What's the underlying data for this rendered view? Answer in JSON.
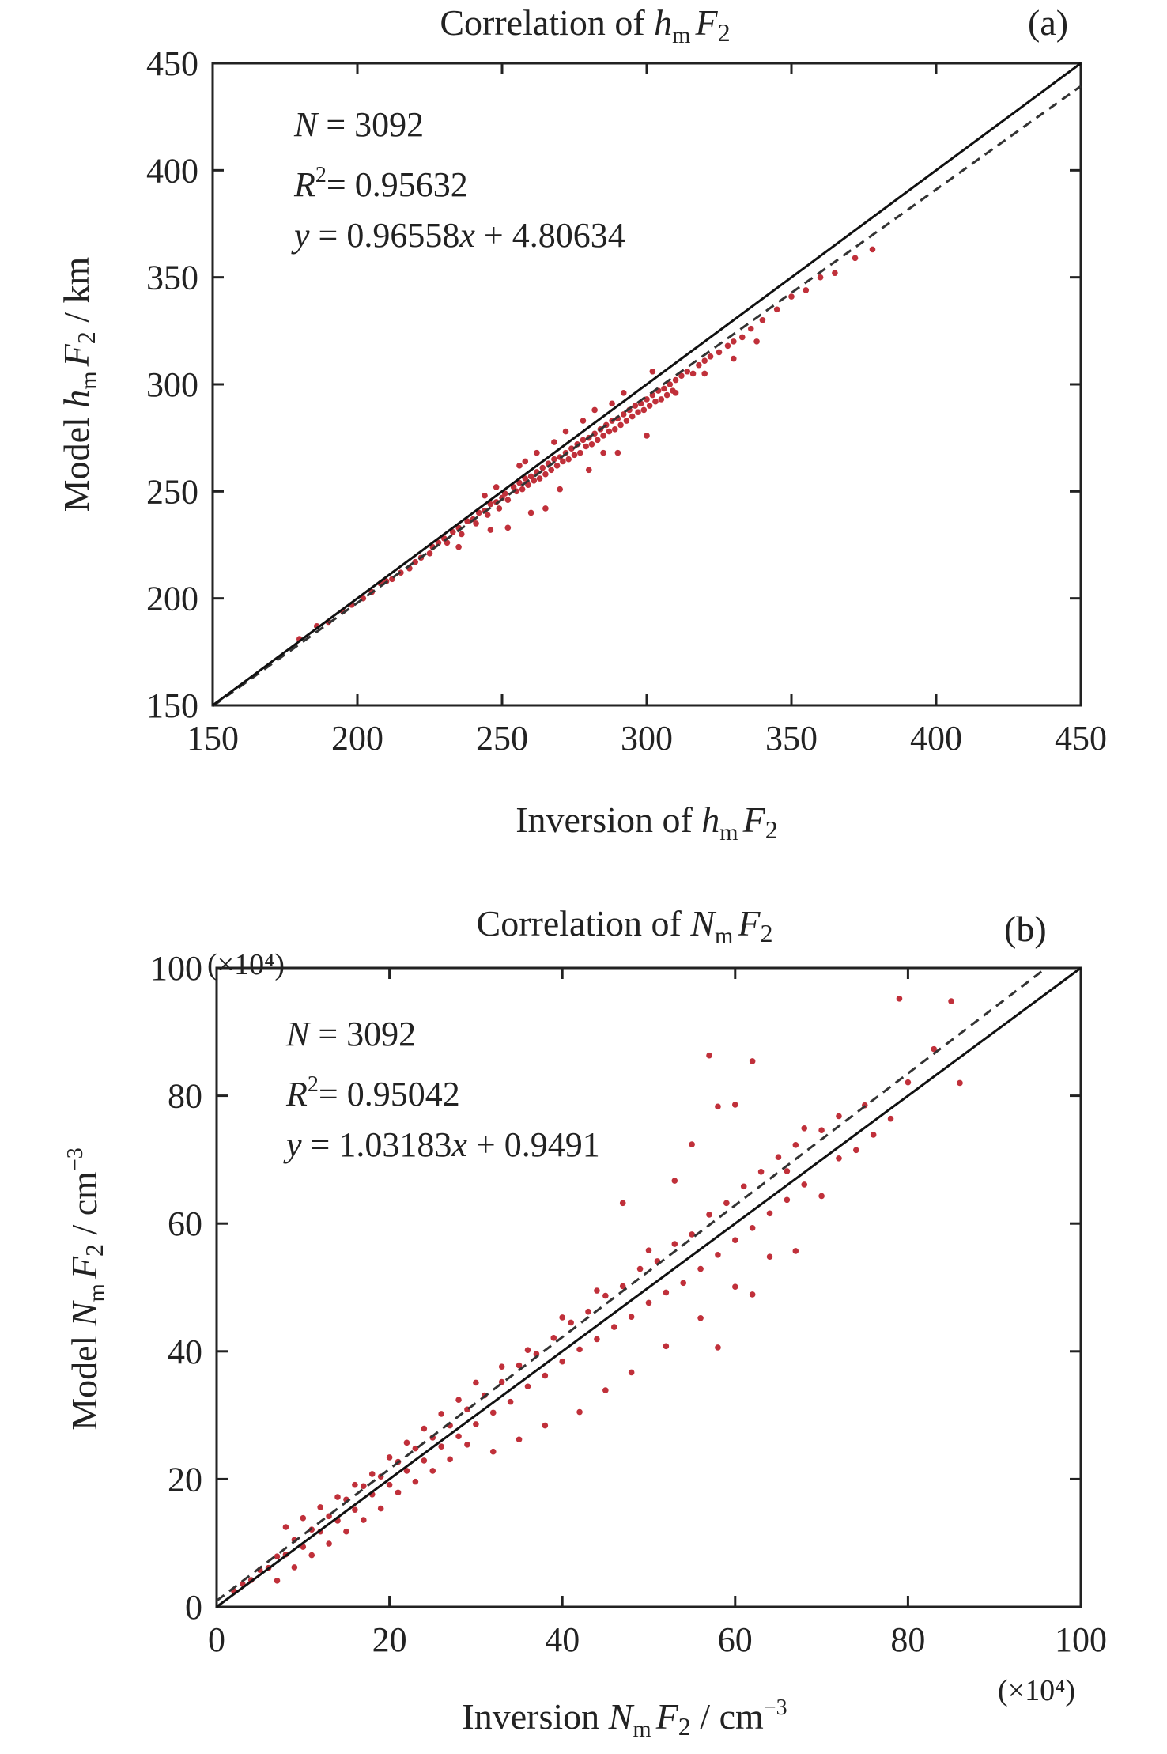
{
  "figure": {
    "panels": [
      {
        "panel_label": "(a)",
        "title": {
          "prefix": "Correlation of ",
          "var": "h",
          "sub": "m",
          "tail": "F",
          "tail_sub": "2"
        },
        "xlabel": {
          "prefix": "Inversion of ",
          "var": "h",
          "sub": "m",
          "tail": "F",
          "tail_sub": "2",
          "unit": ""
        },
        "ylabel": {
          "prefix": "Model ",
          "var": "h",
          "sub": "m",
          "tail": "F",
          "tail_sub": "2",
          "unit": " / km",
          "unit_sup": ""
        },
        "stats": {
          "n_lhs": "N",
          "n_rhs": " = 3092",
          "r2_lhs": "R",
          "r2_sup": "2",
          "r2_rhs": "= 0.95632",
          "eq_y": "y",
          "eq_mid": " = 0.96558",
          "eq_x": "x",
          "eq_tail": " + 4.80634"
        },
        "x_multiplier": "",
        "y_multiplier": ""
      },
      {
        "panel_label": "(b)",
        "title": {
          "prefix": "Correlation of ",
          "var": "N",
          "sub": "m",
          "tail": "F",
          "tail_sub": "2"
        },
        "xlabel": {
          "prefix": "Inversion ",
          "var": "N",
          "sub": "m",
          "tail": "F",
          "tail_sub": "2",
          "unit": " / cm",
          "unit_sup": "−3"
        },
        "ylabel": {
          "prefix": "Model ",
          "var": "N",
          "sub": "m",
          "tail": "F",
          "tail_sub": "2",
          "unit": " / cm",
          "unit_sup": "−3"
        },
        "stats": {
          "n_lhs": "N",
          "n_rhs": " = 3092",
          "r2_lhs": "R",
          "r2_sup": "2",
          "r2_rhs": "= 0.95042",
          "eq_y": "y",
          "eq_mid": " = 1.03183",
          "eq_x": "x",
          "eq_tail": " + 0.9491"
        },
        "x_multiplier": "(×10⁴)",
        "y_multiplier": "(×10⁴)"
      }
    ]
  },
  "chart_data": [
    {
      "type": "scatter",
      "xlim": [
        150,
        450
      ],
      "ylim": [
        150,
        450
      ],
      "xticks": [
        150,
        200,
        250,
        300,
        350,
        400,
        450
      ],
      "yticks": [
        150,
        200,
        250,
        300,
        350,
        400,
        450
      ],
      "n_points": 3092,
      "point_color": "#c0303a",
      "fit": {
        "slope": 0.96558,
        "intercept": 4.80634,
        "style": "dashed"
      },
      "identity_line": {
        "slope": 1,
        "intercept": 0,
        "style": "solid"
      },
      "points": [
        [
          180,
          181
        ],
        [
          186,
          187
        ],
        [
          190,
          189
        ],
        [
          195,
          194
        ],
        [
          198,
          197
        ],
        [
          202,
          200
        ],
        [
          205,
          203
        ],
        [
          208,
          207
        ],
        [
          210,
          208
        ],
        [
          212,
          209
        ],
        [
          215,
          212
        ],
        [
          218,
          214
        ],
        [
          220,
          217
        ],
        [
          222,
          219
        ],
        [
          225,
          221
        ],
        [
          226,
          224
        ],
        [
          228,
          226
        ],
        [
          230,
          228
        ],
        [
          231,
          226
        ],
        [
          233,
          231
        ],
        [
          235,
          233
        ],
        [
          236,
          230
        ],
        [
          238,
          236
        ],
        [
          240,
          237
        ],
        [
          241,
          235
        ],
        [
          242,
          240
        ],
        [
          244,
          241
        ],
        [
          245,
          239
        ],
        [
          246,
          244
        ],
        [
          248,
          245
        ],
        [
          249,
          242
        ],
        [
          250,
          247
        ],
        [
          251,
          249
        ],
        [
          252,
          246
        ],
        [
          254,
          252
        ],
        [
          255,
          250
        ],
        [
          256,
          254
        ],
        [
          257,
          251
        ],
        [
          258,
          256
        ],
        [
          259,
          253
        ],
        [
          260,
          257
        ],
        [
          261,
          255
        ],
        [
          262,
          259
        ],
        [
          263,
          256
        ],
        [
          264,
          261
        ],
        [
          265,
          258
        ],
        [
          266,
          263
        ],
        [
          267,
          260
        ],
        [
          268,
          265
        ],
        [
          269,
          262
        ],
        [
          270,
          266
        ],
        [
          271,
          264
        ],
        [
          272,
          268
        ],
        [
          273,
          265
        ],
        [
          274,
          270
        ],
        [
          275,
          267
        ],
        [
          276,
          272
        ],
        [
          277,
          268
        ],
        [
          278,
          274
        ],
        [
          279,
          271
        ],
        [
          280,
          275
        ],
        [
          281,
          272
        ],
        [
          282,
          277
        ],
        [
          283,
          274
        ],
        [
          284,
          279
        ],
        [
          285,
          276
        ],
        [
          286,
          281
        ],
        [
          287,
          278
        ],
        [
          288,
          283
        ],
        [
          289,
          279
        ],
        [
          290,
          284
        ],
        [
          291,
          281
        ],
        [
          292,
          286
        ],
        [
          293,
          283
        ],
        [
          294,
          288
        ],
        [
          295,
          285
        ],
        [
          296,
          290
        ],
        [
          297,
          287
        ],
        [
          298,
          291
        ],
        [
          299,
          288
        ],
        [
          300,
          293
        ],
        [
          301,
          290
        ],
        [
          302,
          295
        ],
        [
          303,
          292
        ],
        [
          304,
          297
        ],
        [
          305,
          293
        ],
        [
          306,
          298
        ],
        [
          307,
          295
        ],
        [
          308,
          300
        ],
        [
          309,
          297
        ],
        [
          310,
          302
        ],
        [
          312,
          304
        ],
        [
          314,
          306
        ],
        [
          316,
          305
        ],
        [
          318,
          309
        ],
        [
          320,
          311
        ],
        [
          322,
          313
        ],
        [
          325,
          315
        ],
        [
          328,
          318
        ],
        [
          330,
          320
        ],
        [
          333,
          322
        ],
        [
          336,
          326
        ],
        [
          340,
          330
        ],
        [
          345,
          335
        ],
        [
          350,
          341
        ],
        [
          355,
          344
        ],
        [
          360,
          350
        ],
        [
          365,
          352
        ],
        [
          372,
          359
        ],
        [
          378,
          363
        ],
        [
          265,
          242
        ],
        [
          252,
          233
        ],
        [
          290,
          268
        ],
        [
          300,
          276
        ],
        [
          280,
          260
        ],
        [
          270,
          251
        ],
        [
          246,
          232
        ],
        [
          235,
          224
        ],
        [
          260,
          240
        ],
        [
          285,
          268
        ],
        [
          310,
          296
        ],
        [
          320,
          305
        ],
        [
          330,
          312
        ],
        [
          338,
          320
        ],
        [
          244,
          248
        ],
        [
          256,
          262
        ],
        [
          262,
          268
        ],
        [
          272,
          278
        ],
        [
          282,
          288
        ],
        [
          292,
          296
        ],
        [
          302,
          306
        ],
        [
          248,
          252
        ],
        [
          258,
          264
        ],
        [
          268,
          273
        ],
        [
          278,
          283
        ],
        [
          288,
          291
        ]
      ]
    },
    {
      "type": "scatter",
      "xlim": [
        0,
        100
      ],
      "ylim": [
        0,
        100
      ],
      "xticks": [
        0,
        20,
        40,
        60,
        80,
        100
      ],
      "yticks": [
        0,
        20,
        40,
        60,
        80,
        100
      ],
      "units_multiplier": 10000,
      "n_points": 3092,
      "point_color": "#c0303a",
      "fit": {
        "slope": 1.03183,
        "intercept": 0.9491,
        "style": "dashed"
      },
      "identity_line": {
        "slope": 1,
        "intercept": 0,
        "style": "solid"
      },
      "points": [
        [
          2,
          2.5
        ],
        [
          3,
          3.6
        ],
        [
          4,
          4.2
        ],
        [
          5,
          5.8
        ],
        [
          6,
          6.1
        ],
        [
          7,
          7.9
        ],
        [
          8,
          8.2
        ],
        [
          9,
          10.5
        ],
        [
          10,
          9.4
        ],
        [
          11,
          12.1
        ],
        [
          12,
          11.8
        ],
        [
          13,
          14.2
        ],
        [
          14,
          13.5
        ],
        [
          15,
          16.8
        ],
        [
          16,
          15.2
        ],
        [
          17,
          18.9
        ],
        [
          18,
          17.6
        ],
        [
          19,
          20.4
        ],
        [
          20,
          19.1
        ],
        [
          21,
          22.7
        ],
        [
          22,
          21.3
        ],
        [
          23,
          24.8
        ],
        [
          24,
          22.9
        ],
        [
          25,
          26.5
        ],
        [
          26,
          25.1
        ],
        [
          27,
          28.4
        ],
        [
          28,
          26.7
        ],
        [
          29,
          30.9
        ],
        [
          30,
          28.6
        ],
        [
          31,
          33.1
        ],
        [
          32,
          30.4
        ],
        [
          33,
          35.2
        ],
        [
          34,
          32.1
        ],
        [
          35,
          37.8
        ],
        [
          36,
          34.5
        ],
        [
          37,
          39.6
        ],
        [
          38,
          36.2
        ],
        [
          39,
          42.1
        ],
        [
          40,
          38.4
        ],
        [
          41,
          44.5
        ],
        [
          42,
          40.3
        ],
        [
          43,
          46.2
        ],
        [
          44,
          41.9
        ],
        [
          45,
          48.7
        ],
        [
          46,
          43.8
        ],
        [
          47,
          50.2
        ],
        [
          48,
          45.4
        ],
        [
          49,
          52.9
        ],
        [
          50,
          47.6
        ],
        [
          51,
          54.1
        ],
        [
          52,
          49.2
        ],
        [
          53,
          56.8
        ],
        [
          54,
          50.7
        ],
        [
          55,
          58.3
        ],
        [
          56,
          52.9
        ],
        [
          57,
          61.4
        ],
        [
          58,
          55.1
        ],
        [
          59,
          63.2
        ],
        [
          60,
          57.4
        ],
        [
          61,
          65.8
        ],
        [
          62,
          59.3
        ],
        [
          63,
          68.1
        ],
        [
          64,
          61.6
        ],
        [
          65,
          70.4
        ],
        [
          66,
          63.7
        ],
        [
          67,
          72.3
        ],
        [
          68,
          66.1
        ],
        [
          70,
          74.6
        ],
        [
          72,
          70.2
        ],
        [
          75,
          78.5
        ],
        [
          78,
          76.4
        ],
        [
          80,
          82.1
        ],
        [
          83,
          87.3
        ],
        [
          86,
          82.0
        ],
        [
          79,
          95.2
        ],
        [
          85,
          94.8
        ],
        [
          57,
          86.3
        ],
        [
          62,
          85.4
        ],
        [
          47,
          63.2
        ],
        [
          50,
          55.8
        ],
        [
          53,
          66.7
        ],
        [
          55,
          72.4
        ],
        [
          58,
          78.3
        ],
        [
          60,
          78.6
        ],
        [
          42,
          30.5
        ],
        [
          45,
          33.9
        ],
        [
          48,
          36.7
        ],
        [
          38,
          28.4
        ],
        [
          35,
          26.2
        ],
        [
          32,
          24.3
        ],
        [
          52,
          40.8
        ],
        [
          56,
          45.2
        ],
        [
          60,
          50.1
        ],
        [
          64,
          54.8
        ],
        [
          67,
          55.7
        ],
        [
          58,
          40.6
        ],
        [
          62,
          48.9
        ],
        [
          7,
          4.1
        ],
        [
          9,
          6.2
        ],
        [
          11,
          8.1
        ],
        [
          13,
          9.9
        ],
        [
          15,
          11.8
        ],
        [
          17,
          13.6
        ],
        [
          19,
          15.4
        ],
        [
          21,
          17.9
        ],
        [
          23,
          19.6
        ],
        [
          25,
          21.3
        ],
        [
          27,
          23.1
        ],
        [
          29,
          25.4
        ],
        [
          8,
          12.5
        ],
        [
          10,
          13.9
        ],
        [
          12,
          15.6
        ],
        [
          14,
          17.2
        ],
        [
          16,
          19.1
        ],
        [
          18,
          20.8
        ],
        [
          20,
          23.4
        ],
        [
          22,
          25.7
        ],
        [
          24,
          27.9
        ],
        [
          26,
          30.2
        ],
        [
          28,
          32.4
        ],
        [
          30,
          35.1
        ],
        [
          33,
          37.6
        ],
        [
          36,
          40.2
        ],
        [
          40,
          45.3
        ],
        [
          44,
          49.5
        ],
        [
          70,
          64.3
        ],
        [
          72,
          76.8
        ],
        [
          74,
          71.5
        ],
        [
          76,
          73.9
        ],
        [
          66,
          68.2
        ],
        [
          68,
          74.9
        ]
      ]
    }
  ]
}
